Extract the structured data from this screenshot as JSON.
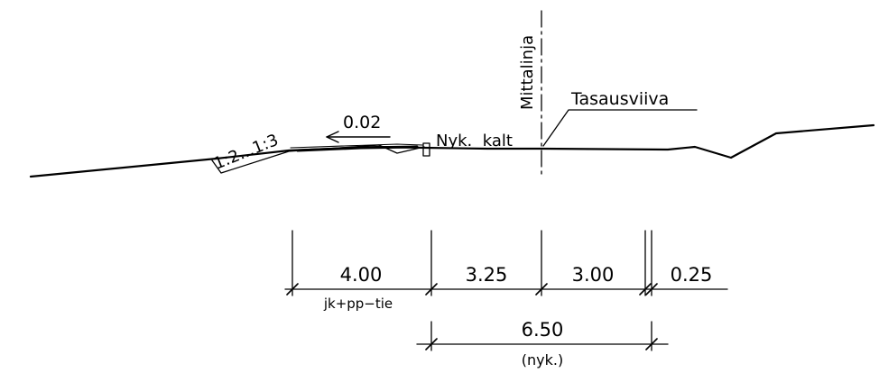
{
  "labels": {
    "centerline": "Mittalinja",
    "leveling_line": "Tasausviiva",
    "slope_ratio": "1:2...1:3",
    "crossfall": "0.02",
    "existing_slope": "Nyk.  kalt"
  },
  "dimensions": {
    "top_row": [
      {
        "value": "4.00",
        "label": "jk+pp−tie"
      },
      {
        "value": "3.25",
        "label": ""
      },
      {
        "value": "3.00",
        "label": ""
      },
      {
        "value": "0.25",
        "label": ""
      }
    ],
    "bottom": {
      "value": "6.50",
      "label": "(nyk.)"
    }
  }
}
